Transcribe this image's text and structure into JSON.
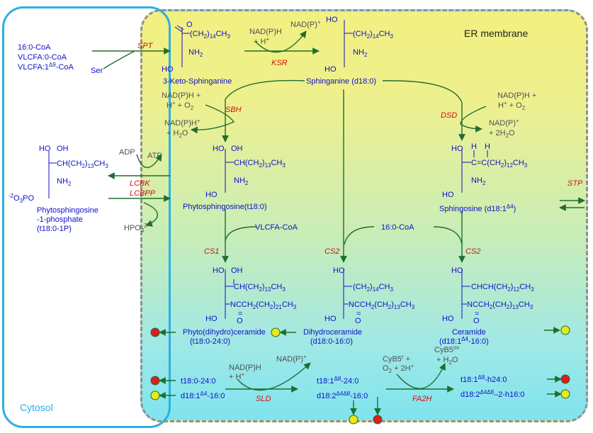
{
  "labels": {
    "er": "ER membrane",
    "cytosol": "Cytosol"
  },
  "colors": {
    "chem": "#1010c8",
    "enzyme": "#d01010",
    "arrow": "#1e6e2e",
    "grey": "#606060",
    "red": "#d81e1e",
    "yellow": "#e8e81a"
  },
  "substrates": {
    "acyl1": "16:0-CoA",
    "acyl2": "VLCFA:0-CoA",
    "acyl3a": "VLCFA:1",
    "acyl3b": "Δ9",
    "acyl3c": "-CoA",
    "ser": "Ser",
    "vlcfa": "VLCFA-CoA",
    "palm": "16:0-CoA"
  },
  "enzymes": {
    "spt": "SPT",
    "ksr": "KSR",
    "sbh": "SBH",
    "dsd": "DSD",
    "lcbk": "LCBK",
    "lcbpp": "LCBPP",
    "stp": "STP",
    "cs1": "CS1",
    "cs2a": "CS2",
    "cs2b": "CS2",
    "sld": "SLD",
    "fa2h": "FA2H"
  },
  "cofactors": {
    "ksr_in": "NAD(P)H",
    "ksr_in2": "+ H",
    "ksr_out": "NAD(P)",
    "sbh_in1": "NAD(P)H +",
    "sbh_in2a": "H",
    "sbh_in2b": " + O",
    "sbh_out1": "NAD(P)H",
    "sbh_out2": "+ H",
    "sbh_out2b": "O",
    "dsd_in1": "NAD(P)H +",
    "dsd_in2a": "H",
    "dsd_in2b": " + O",
    "dsd_out1": "NAD(P)",
    "dsd_out2": "+ 2H",
    "dsd_out2b": "O",
    "adp": "ADP",
    "atp": "ATP",
    "hpo": "HPO",
    "sld_in1": "NAD(P)H",
    "sld_in2": "+ H",
    "sld_out": "NAD(P)",
    "fa_in1a": "CyB5",
    "fa_in1b": "r",
    "fa_in1c": " +",
    "fa_in2a": "O",
    "fa_in2b": " + 2H",
    "fa_out1a": "CyB5",
    "fa_out1b": "ox",
    "fa_out2a": "+ H",
    "fa_out2b": "O"
  },
  "names": {
    "keto": "3-Keto-Sphinganine",
    "sphinganine": "Sphinganine (d18:0)",
    "phyto": "Phytosphingosine(t18:0)",
    "sphingosine": "Sphingosine (d18:1",
    "sphingosine_sup": "Δ4",
    "pp1": "Phytosphingosine",
    "pp2": "-1-phosphate",
    "pp3": "(t18:0-1P)",
    "phytocer1": "Phyto(dihydro)ceramide",
    "phytocer2": "(t18:0-24:0)",
    "dihydrocer1": "Dihydroceramide",
    "dihydrocer2": "(d18:0-16:0)",
    "cer1": "Ceramide",
    "cer2a": "(d18:1",
    "cer2b": "Δ4",
    "cer2c": "-16:0)"
  },
  "bottom": {
    "l1": "t18:0-24:0",
    "l2a": "d18:1",
    "l2b": "Δ4",
    "l2c": "-16:0",
    "m1a": "t18:1",
    "m1b": "Δ8",
    "m1c": "-24:0",
    "m2a": "d18:2",
    "m2b": "Δ4Δ8",
    "m2c": "-16:0",
    "r1a": "t18:1",
    "r1b": "Δ8",
    "r1c": "-h24:0",
    "r2a": "d18:2",
    "r2b": "Δ4Δ8",
    "r2c": "–2-h16:0"
  },
  "struct": {
    "ho": "HO",
    "oh": "OH",
    "nh": "NH",
    "o": "O",
    "two": "2",
    "plus": "+",
    "minus": "2-",
    "po_a": "-2",
    "po_b": "O",
    "po_c": "3",
    "po_d": "PO",
    "ch2_14": "(CH2)14CH3",
    "ch2_14_sub_a": "(CH",
    "ch2_14_sub_b": ")",
    "ch2_14_sub_c": "CH",
    "n14": "14",
    "n13": "13",
    "n12": "12",
    "n21": "21",
    "n3": "3",
    "ch_a": "CH(CH",
    "chch_a": "CHCH(CH",
    "ce_a": "C=C(CH",
    "h": "H",
    "ncch_a": "NCCH",
    "ncch_b": "(CH",
    "eq": "="
  }
}
